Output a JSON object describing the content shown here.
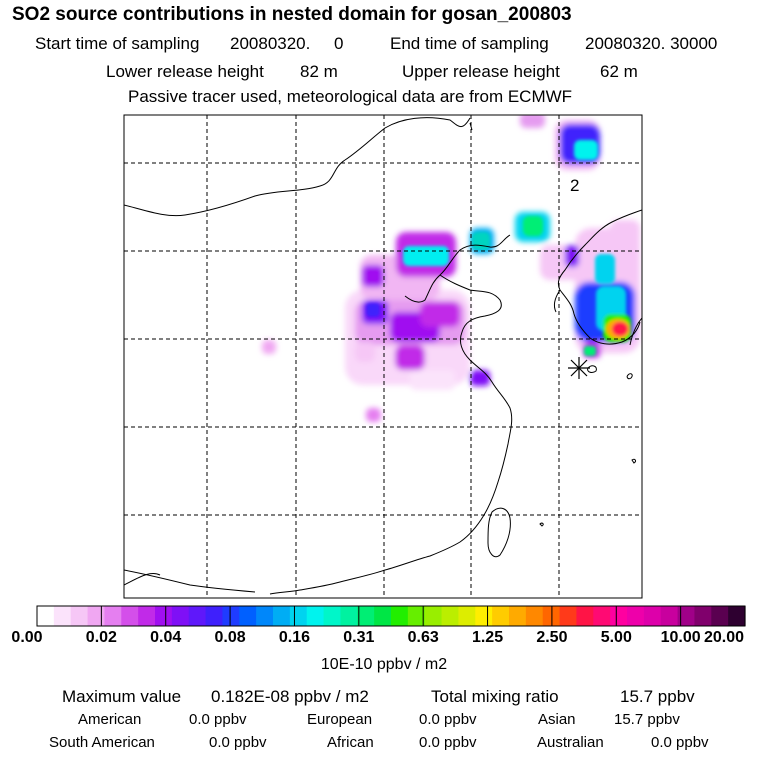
{
  "title": "SO2 source contributions in nested domain for gosan_200803",
  "header": {
    "start_label": "Start time of sampling",
    "start_value": "20080320.     0",
    "end_label": "End time of sampling",
    "end_value": "20080320. 30000",
    "lower_label": "Lower release height",
    "lower_value": "82 m",
    "upper_label": "Upper release height",
    "upper_value": "62 m",
    "note": "Passive tracer used, meteorological data are from ECMWF"
  },
  "map": {
    "region_label": "2",
    "receptor_marker": "asterisk-icon"
  },
  "colorbar": {
    "tick_labels": [
      "0.00",
      "0.02",
      "0.04",
      "0.08",
      "0.16",
      "0.31",
      "0.63",
      "1.25",
      "2.50",
      "5.00",
      "10.00",
      "20.00"
    ],
    "units": "10E-10 ppbv / m2",
    "colors": [
      "#ffffff",
      "#fbe3fb",
      "#f6c7f6",
      "#f0a7f2",
      "#e57ff0",
      "#d44fea",
      "#c12ae8",
      "#a00ff0",
      "#7f10f6",
      "#5f18fa",
      "#3f20fc",
      "#1f3cff",
      "#0060ff",
      "#0087fa",
      "#00adf4",
      "#00d3ef",
      "#00f3ee",
      "#00f6c9",
      "#00f2a0",
      "#00ee74",
      "#00e645",
      "#22ee00",
      "#66ee00",
      "#99ee00",
      "#bbee00",
      "#dded00",
      "#ffee00",
      "#ffcc00",
      "#ffaa00",
      "#ff8800",
      "#ff6600",
      "#ff3a1a",
      "#ff1446",
      "#ff0a73",
      "#ff00a0",
      "#ee00aa",
      "#dd00aa",
      "#c8009e",
      "#a00088",
      "#80006c",
      "#5a0050",
      "#2e0030"
    ]
  },
  "stats": {
    "max_label": "Maximum value",
    "max_value": "0.182E-08 ppbv / m2",
    "total_label": "Total mixing ratio",
    "total_value": "15.7 ppbv",
    "regions": [
      {
        "name": "American",
        "value": "0.0 ppbv"
      },
      {
        "name": "European",
        "value": "0.0 ppbv"
      },
      {
        "name": "Asian",
        "value": "15.7 ppbv"
      },
      {
        "name": "South American",
        "value": "0.0 ppbv"
      },
      {
        "name": "African",
        "value": "0.0 ppbv"
      },
      {
        "name": "Australian",
        "value": "0.0 ppbv"
      }
    ]
  }
}
